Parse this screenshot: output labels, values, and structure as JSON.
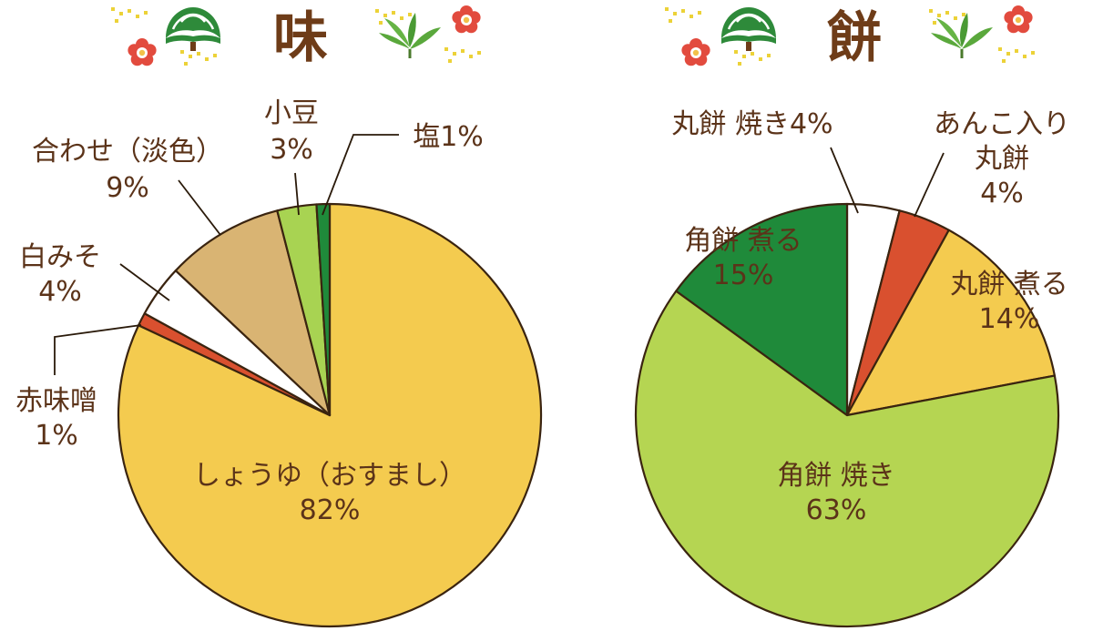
{
  "colors": {
    "text": "#5b3319",
    "outline": "#3a2410",
    "gold": "#ecd238",
    "pine": "#2e8a3a",
    "bamboo": "#5aa83c",
    "plum": "#d9433a"
  },
  "decoration_icons": [
    "pine-icon",
    "plum-blossom-icon",
    "bamboo-icon",
    "gold-dots-icon"
  ],
  "chart_data": [
    {
      "type": "pie",
      "title": "味",
      "start": "12 o'clock",
      "direction": "clockwise",
      "slices": [
        {
          "id": "soy",
          "label_lines": [
            "しょうゆ（おすまし）",
            "82%"
          ],
          "value": 82,
          "color": "#f4cb4f"
        },
        {
          "id": "red-miso",
          "label_lines": [
            "赤味噌",
            "1%"
          ],
          "value": 1,
          "color": "#d9502f"
        },
        {
          "id": "white-miso",
          "label_lines": [
            "白みそ",
            "4%"
          ],
          "value": 4,
          "color": "#ffffff"
        },
        {
          "id": "mixed",
          "label_lines": [
            "合わせ（淡色）",
            "9%"
          ],
          "value": 9,
          "color": "#d9b473"
        },
        {
          "id": "adzuki",
          "label_lines": [
            "小豆",
            "3%"
          ],
          "value": 3,
          "color": "#a8d352"
        },
        {
          "id": "salt",
          "label_lines": [
            "塩1%"
          ],
          "value": 1,
          "color": "#1f8a3a"
        }
      ]
    },
    {
      "type": "pie",
      "title": "餅",
      "start": "12 o'clock",
      "direction": "clockwise",
      "slices": [
        {
          "id": "round-grilled",
          "label_lines": [
            "丸餅 焼き4%"
          ],
          "value": 4,
          "color": "#ffffff"
        },
        {
          "id": "anko-round",
          "label_lines": [
            "あんこ入り",
            "丸餅",
            "4%"
          ],
          "value": 4,
          "color": "#d9502f"
        },
        {
          "id": "round-boiled",
          "label_lines": [
            "丸餅 煮る",
            "14%"
          ],
          "value": 14,
          "color": "#f4cb4f"
        },
        {
          "id": "square-grilled",
          "label_lines": [
            "角餅 焼き",
            "63%"
          ],
          "value": 63,
          "color": "#b5d552"
        },
        {
          "id": "square-boiled",
          "label_lines": [
            "角餅 煮る",
            "15%"
          ],
          "value": 15,
          "color": "#1f8a3a"
        }
      ]
    }
  ]
}
